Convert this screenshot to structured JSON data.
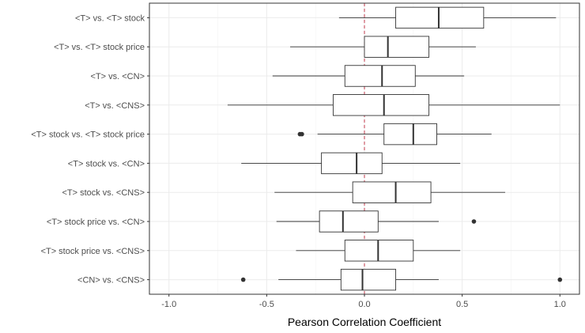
{
  "chart_data": {
    "type": "boxplot",
    "orientation": "horizontal",
    "title": "",
    "xlabel": "Pearson Correlation Coefficient",
    "ylabel": "",
    "xlim": [
      -1.1,
      1.1
    ],
    "x_ticks": [
      -1.0,
      -0.5,
      0.0,
      0.5,
      1.0
    ],
    "x_tick_labels": [
      "-1.0",
      "-0.5",
      "0.0",
      "0.5",
      "1.0"
    ],
    "grid": true,
    "reference_line": {
      "x": 0,
      "style": "dashed",
      "color": "#c0394b"
    },
    "box_fill": "#ffffff",
    "box_stroke": "#333333",
    "categories": [
      {
        "label": "<T> vs. <T> stock",
        "min": -0.13,
        "q1": 0.16,
        "median": 0.38,
        "q3": 0.61,
        "max": 0.98,
        "outliers": []
      },
      {
        "label": "<T> vs. <T> stock price",
        "min": -0.38,
        "q1": 0.0,
        "median": 0.12,
        "q3": 0.33,
        "max": 0.57,
        "outliers": []
      },
      {
        "label": "<T> vs. <CN>",
        "min": -0.47,
        "q1": -0.1,
        "median": 0.09,
        "q3": 0.26,
        "max": 0.51,
        "outliers": []
      },
      {
        "label": "<T> vs. <CNS>",
        "min": -0.7,
        "q1": -0.16,
        "median": 0.1,
        "q3": 0.33,
        "max": 1.0,
        "outliers": []
      },
      {
        "label": "<T> stock vs. <T> stock price",
        "min": -0.24,
        "q1": 0.1,
        "median": 0.25,
        "q3": 0.37,
        "max": 0.65,
        "outliers": [
          -0.33,
          -0.32
        ]
      },
      {
        "label": "<T> stock vs. <CN>",
        "min": -0.63,
        "q1": -0.22,
        "median": -0.04,
        "q3": 0.09,
        "max": 0.49,
        "outliers": []
      },
      {
        "label": "<T> stock vs. <CNS>",
        "min": -0.46,
        "q1": -0.06,
        "median": 0.16,
        "q3": 0.34,
        "max": 0.72,
        "outliers": []
      },
      {
        "label": "<T> stock price vs. <CN>",
        "min": -0.45,
        "q1": -0.23,
        "median": -0.11,
        "q3": 0.07,
        "max": 0.38,
        "outliers": [
          0.56
        ]
      },
      {
        "label": "<T> stock price vs. <CNS>",
        "min": -0.35,
        "q1": -0.1,
        "median": 0.07,
        "q3": 0.25,
        "max": 0.49,
        "outliers": []
      },
      {
        "label": "<CN> vs. <CNS>",
        "min": -0.44,
        "q1": -0.12,
        "median": -0.01,
        "q3": 0.16,
        "max": 0.38,
        "outliers": [
          -0.62,
          1.0
        ]
      }
    ]
  }
}
